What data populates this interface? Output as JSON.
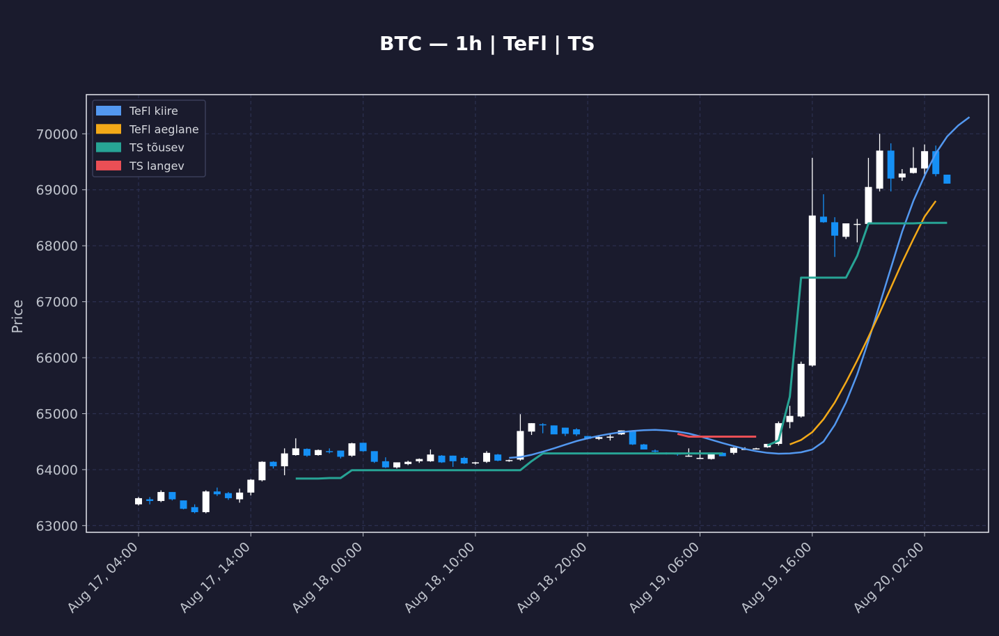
{
  "chart_data": {
    "type": "candlestick",
    "title": "BTC — 1h  |  TeFl  |  TS",
    "ylabel": "Price",
    "xlabel": "",
    "ylim": [
      62880,
      70700
    ],
    "y_ticks": [
      63000,
      64000,
      65000,
      66000,
      67000,
      68000,
      69000,
      70000
    ],
    "x_ticks": [
      {
        "index": 0,
        "label": "Aug 17, 04:00"
      },
      {
        "index": 10,
        "label": "Aug 17, 14:00"
      },
      {
        "index": 20,
        "label": "Aug 18, 00:00"
      },
      {
        "index": 30,
        "label": "Aug 18, 10:00"
      },
      {
        "index": 40,
        "label": "Aug 18, 20:00"
      },
      {
        "index": 50,
        "label": "Aug 19, 06:00"
      },
      {
        "index": 60,
        "label": "Aug 19, 16:00"
      },
      {
        "index": 70,
        "label": "Aug 20, 02:00"
      }
    ],
    "grid": true,
    "legend_position": "top-left",
    "colors": {
      "background": "#1a1b2d",
      "grid": "#2c3050",
      "up_candle": "#ffffff",
      "down_candle": "#1590f5",
      "fast": "#5398f0",
      "slow": "#f3a918",
      "ts_up": "#27a495",
      "ts_down": "#ea4f55",
      "text": "#bfc3cc",
      "title": "#ffffff"
    },
    "legend": [
      {
        "label": "TeFl kiire",
        "color": "#5398f0"
      },
      {
        "label": "TeFl aeglane",
        "color": "#f3a918"
      },
      {
        "label": "TS tõusev",
        "color": "#27a495"
      },
      {
        "label": "TS langev",
        "color": "#ea4f55"
      }
    ],
    "candles": [
      [
        63380,
        63510,
        63360,
        63490
      ],
      [
        63470,
        63510,
        63380,
        63440
      ],
      [
        63440,
        63630,
        63420,
        63600
      ],
      [
        63600,
        63600,
        63450,
        63470
      ],
      [
        63450,
        63450,
        63290,
        63300
      ],
      [
        63330,
        63380,
        63220,
        63240
      ],
      [
        63240,
        63630,
        63220,
        63610
      ],
      [
        63610,
        63680,
        63530,
        63560
      ],
      [
        63580,
        63600,
        63460,
        63490
      ],
      [
        63470,
        63660,
        63410,
        63590
      ],
      [
        63590,
        63830,
        63540,
        63820
      ],
      [
        63810,
        64150,
        63790,
        64140
      ],
      [
        64140,
        64150,
        64020,
        64060
      ],
      [
        64060,
        64380,
        63900,
        64290
      ],
      [
        64260,
        64560,
        64250,
        64380
      ],
      [
        64370,
        64380,
        64230,
        64250
      ],
      [
        64260,
        64360,
        64250,
        64350
      ],
      [
        64330,
        64380,
        64290,
        64320
      ],
      [
        64340,
        64340,
        64200,
        64230
      ],
      [
        64250,
        64480,
        64230,
        64470
      ],
      [
        64480,
        64480,
        64320,
        64330
      ],
      [
        64330,
        64330,
        64120,
        64140
      ],
      [
        64150,
        64220,
        64030,
        64040
      ],
      [
        64040,
        64130,
        64020,
        64130
      ],
      [
        64100,
        64160,
        64080,
        64140
      ],
      [
        64150,
        64200,
        64120,
        64190
      ],
      [
        64150,
        64360,
        64140,
        64270
      ],
      [
        64250,
        64260,
        64120,
        64130
      ],
      [
        64250,
        64250,
        64050,
        64150
      ],
      [
        64210,
        64230,
        64100,
        64110
      ],
      [
        64110,
        64140,
        64090,
        64130
      ],
      [
        64140,
        64330,
        64120,
        64300
      ],
      [
        64270,
        64280,
        64150,
        64160
      ],
      [
        64160,
        64180,
        64140,
        64170
      ],
      [
        64180,
        64990,
        64160,
        64690
      ],
      [
        64680,
        64830,
        64620,
        64830
      ],
      [
        64810,
        64830,
        64650,
        64800
      ],
      [
        64790,
        64790,
        64640,
        64630
      ],
      [
        64750,
        64750,
        64600,
        64640
      ],
      [
        64720,
        64740,
        64600,
        64630
      ],
      [
        64600,
        64600,
        64540,
        64550
      ],
      [
        64550,
        64600,
        64530,
        64580
      ],
      [
        64570,
        64640,
        64520,
        64590
      ],
      [
        64630,
        64700,
        64620,
        64700
      ],
      [
        64700,
        64700,
        64440,
        64450
      ],
      [
        64450,
        64460,
        64370,
        64360
      ],
      [
        64340,
        64360,
        64310,
        64320
      ],
      [
        64300,
        64310,
        64270,
        64290
      ],
      [
        64290,
        64300,
        64250,
        64270
      ],
      [
        64240,
        64380,
        64230,
        64250
      ],
      [
        64200,
        64350,
        64190,
        64210
      ],
      [
        64190,
        64300,
        64180,
        64290
      ],
      [
        64300,
        64310,
        64250,
        64240
      ],
      [
        64300,
        64400,
        64270,
        64390
      ],
      [
        64360,
        64400,
        64350,
        64370
      ],
      [
        64370,
        64390,
        64360,
        64380
      ],
      [
        64400,
        64460,
        64390,
        64460
      ],
      [
        64460,
        64860,
        64430,
        64830
      ],
      [
        64850,
        65140,
        64740,
        64960
      ],
      [
        64950,
        65930,
        64930,
        65890
      ],
      [
        65860,
        69570,
        65840,
        68540
      ],
      [
        68520,
        68920,
        68410,
        68420
      ],
      [
        68420,
        68510,
        67800,
        68180
      ],
      [
        68160,
        68400,
        68120,
        68400
      ],
      [
        68380,
        68480,
        68060,
        68390
      ],
      [
        68390,
        69570,
        68370,
        69050
      ],
      [
        69020,
        70000,
        68970,
        69700
      ],
      [
        69700,
        69830,
        68970,
        69200
      ],
      [
        69220,
        69370,
        69160,
        69290
      ],
      [
        69300,
        69760,
        69290,
        69390
      ],
      [
        69380,
        69810,
        69220,
        69690
      ],
      [
        69690,
        69790,
        69240,
        69280
      ],
      [
        69270,
        69270,
        69110,
        69110
      ]
    ],
    "series": [
      {
        "name": "TeFl kiire",
        "start": 33,
        "values": [
          64210,
          64225,
          64265,
          64320,
          64380,
          64445,
          64510,
          64560,
          64605,
          64640,
          64670,
          64690,
          64705,
          64710,
          64700,
          64680,
          64645,
          64595,
          64535,
          64475,
          64420,
          64370,
          64330,
          64300,
          64285,
          64290,
          64310,
          64360,
          64500,
          64800,
          65200,
          65700,
          66300,
          66950,
          67600,
          68250,
          68800,
          69250,
          69650,
          69950,
          70150,
          70300
        ]
      },
      {
        "name": "TeFl aeglane",
        "start": 58,
        "values": [
          64450,
          64530,
          64670,
          64900,
          65200,
          65560,
          65950,
          66370,
          66800,
          67250,
          67700,
          68120,
          68520,
          68800
        ]
      },
      {
        "name": "TS tõusev",
        "segments": [
          {
            "start": 14,
            "values": [
              63840,
              63840,
              63840,
              63850,
              63850,
              63990,
              63990,
              63990,
              63990,
              63990,
              63990,
              63990,
              63990,
              63990,
              63990,
              63990,
              63990,
              63990,
              63990,
              63990,
              63990,
              64150,
              64290,
              64290,
              64290,
              64290,
              64290,
              64290,
              64290,
              64290,
              64290,
              64290,
              64290,
              64290,
              64290,
              64290,
              64290,
              64290,
              64290
            ]
          },
          {
            "start": 56,
            "values": [
              64430,
              64520,
              65300,
              67430,
              67430,
              67430,
              67430,
              67430,
              67820,
              68400,
              68400,
              68400,
              68400,
              68400,
              68410,
              68410,
              68410
            ]
          }
        ]
      },
      {
        "name": "TS langev",
        "segments": [
          {
            "start": 48,
            "values": [
              64640,
              64590,
              64590,
              64590,
              64590,
              64590,
              64590,
              64590
            ]
          }
        ]
      }
    ]
  }
}
